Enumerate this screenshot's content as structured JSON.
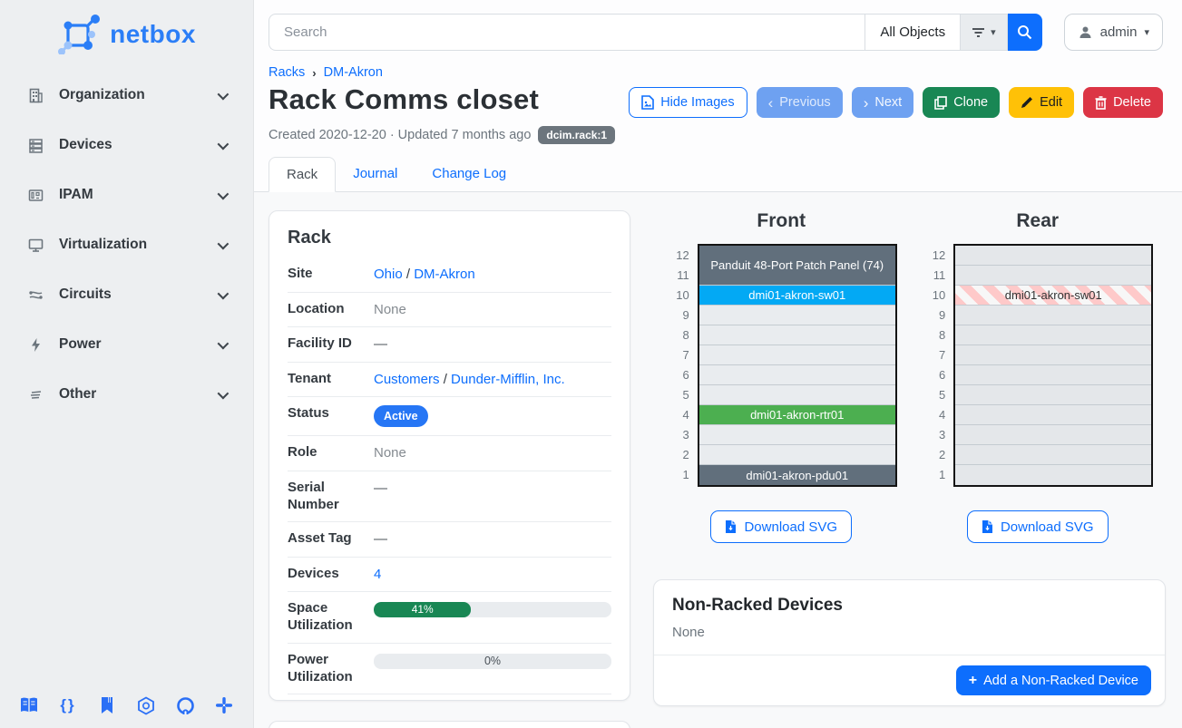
{
  "brand": {
    "name": "netbox"
  },
  "sidebar": {
    "items": [
      {
        "label": "Organization",
        "icon": "building-icon"
      },
      {
        "label": "Devices",
        "icon": "server-rack-icon"
      },
      {
        "label": "IPAM",
        "icon": "ip-address-icon"
      },
      {
        "label": "Virtualization",
        "icon": "monitor-icon"
      },
      {
        "label": "Circuits",
        "icon": "circuits-icon"
      },
      {
        "label": "Power",
        "icon": "lightning-icon"
      },
      {
        "label": "Other",
        "icon": "menu-lines-icon"
      }
    ],
    "footer_icons": [
      "docs-icon",
      "code-braces-icon",
      "bookmark-icon",
      "hexagon-icon",
      "github-icon",
      "slack-icon"
    ]
  },
  "topbar": {
    "search_placeholder": "Search",
    "object_type_button": "All Objects",
    "user": "admin"
  },
  "breadcrumb": {
    "items": [
      "Racks",
      "DM-Akron"
    ]
  },
  "page": {
    "title": "Rack Comms closet",
    "meta": "Created 2020-12-20 · Updated 7 months ago",
    "object_id_badge": "dcim.rack:1"
  },
  "actions": {
    "hide_images": "Hide Images",
    "previous": "Previous",
    "next": "Next",
    "clone": "Clone",
    "edit": "Edit",
    "delete": "Delete"
  },
  "tabs": [
    {
      "label": "Rack",
      "active": true
    },
    {
      "label": "Journal",
      "active": false
    },
    {
      "label": "Change Log",
      "active": false
    }
  ],
  "rack_panel": {
    "title": "Rack",
    "fields": {
      "site": {
        "label": "Site",
        "links": [
          "Ohio",
          "DM-Akron"
        ],
        "sep": " / "
      },
      "location": {
        "label": "Location",
        "value": "None"
      },
      "facility_id": {
        "label": "Facility ID",
        "value": "—"
      },
      "tenant": {
        "label": "Tenant",
        "links": [
          "Customers",
          "Dunder-Mifflin, Inc."
        ],
        "sep": " / "
      },
      "status": {
        "label": "Status",
        "badge": "Active"
      },
      "role": {
        "label": "Role",
        "value": "None"
      },
      "serial_number": {
        "label": "Serial Number",
        "value": "—"
      },
      "asset_tag": {
        "label": "Asset Tag",
        "value": "—"
      },
      "devices": {
        "label": "Devices",
        "link": "4"
      },
      "space_utilization": {
        "label": "Space Utilization",
        "percent": 41,
        "text": "41%"
      },
      "power_utilization": {
        "label": "Power Utilization",
        "percent": 0,
        "text": "0%"
      }
    }
  },
  "elevations": {
    "unit_count": 12,
    "download_label": "Download SVG",
    "front": {
      "title": "Front",
      "units_top_to_bottom": [
        {
          "span": 2,
          "device": "Panduit 48-Port Patch Panel (74)",
          "color": "#616f7c",
          "text_color": "#ffffff"
        },
        {
          "span": 1,
          "device": "dmi01-akron-sw01",
          "color": "#03a9f4",
          "text_color": "#ffffff"
        },
        {
          "span": 1
        },
        {
          "span": 1
        },
        {
          "span": 1
        },
        {
          "span": 1
        },
        {
          "span": 1
        },
        {
          "span": 1,
          "device": "dmi01-akron-rtr01",
          "color": "#4caf50",
          "text_color": "#ffffff"
        },
        {
          "span": 1
        },
        {
          "span": 1
        },
        {
          "span": 1,
          "device": "dmi01-akron-pdu01",
          "color": "#616f7c",
          "text_color": "#ffffff"
        }
      ]
    },
    "rear": {
      "title": "Rear",
      "units_top_to_bottom": [
        {
          "span": 1,
          "blocked": true
        },
        {
          "span": 1,
          "blocked": true
        },
        {
          "span": 1,
          "device": "dmi01-akron-sw01",
          "pattern": "stripes",
          "text_color": "#333333"
        },
        {
          "span": 1,
          "blocked": true
        },
        {
          "span": 1,
          "blocked": true
        },
        {
          "span": 1,
          "blocked": true
        },
        {
          "span": 1,
          "blocked": true
        },
        {
          "span": 1,
          "blocked": true
        },
        {
          "span": 1,
          "blocked": true
        },
        {
          "span": 1,
          "blocked": true
        },
        {
          "span": 1,
          "blocked": true
        },
        {
          "span": 1,
          "blocked": true
        }
      ]
    }
  },
  "non_racked": {
    "title": "Non-Racked Devices",
    "body": "None",
    "add_button": "Add a Non-Racked Device"
  },
  "colors": {
    "accent": "#0d6efd",
    "clone_green": "#198754",
    "edit_yellow": "#ffc107",
    "delete_red": "#dc3545",
    "badge_gray": "#6c757d",
    "progress_green": "#198754"
  }
}
